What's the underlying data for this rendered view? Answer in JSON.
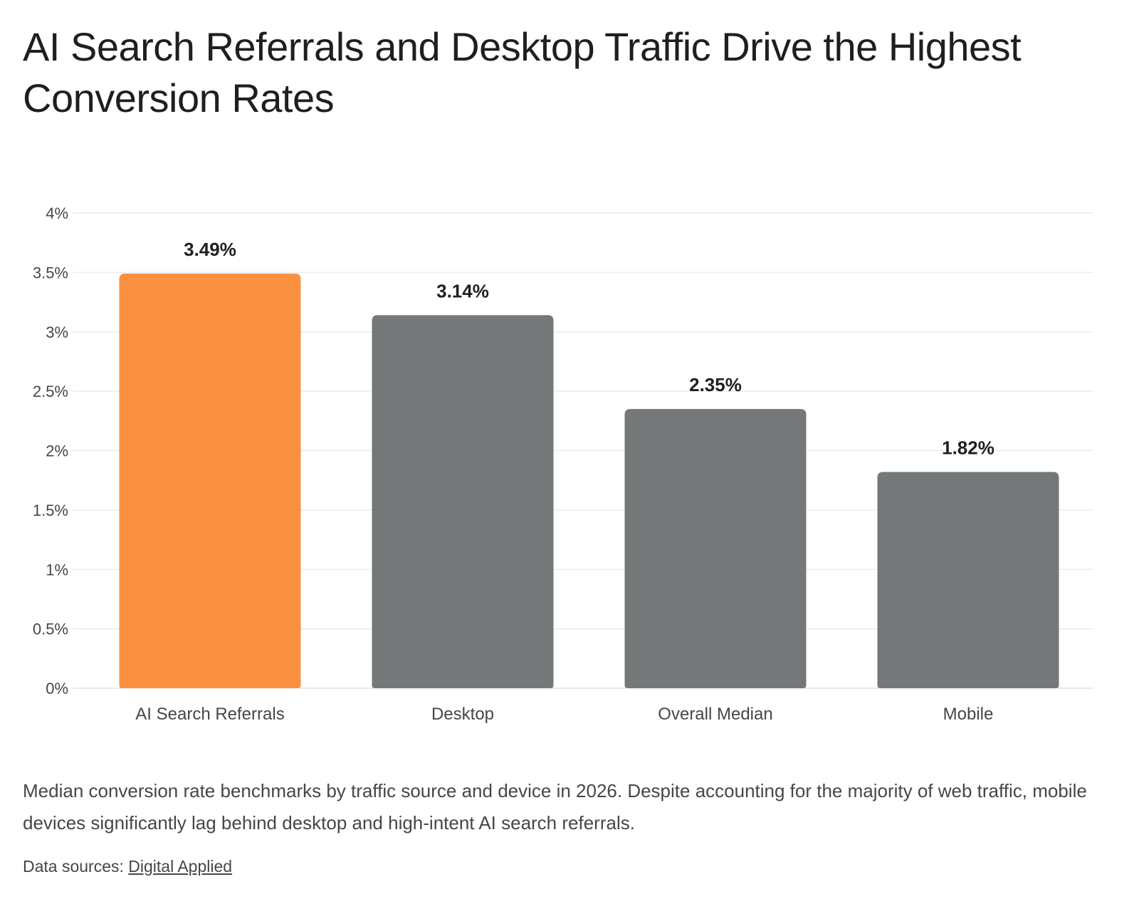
{
  "chart_data": {
    "type": "bar",
    "title": "AI Search Referrals and Desktop Traffic Drive the Highest Conversion Rates",
    "categories": [
      "AI Search Referrals",
      "Desktop",
      "Overall Median",
      "Mobile"
    ],
    "values": [
      3.49,
      3.14,
      2.35,
      1.82
    ],
    "value_labels": [
      "3.49%",
      "3.14%",
      "2.35%",
      "1.82%"
    ],
    "bar_colors": [
      "#f99141",
      "#747878",
      "#747878",
      "#747878"
    ],
    "ylim": [
      0,
      4
    ],
    "yticks": [
      0,
      0.5,
      1,
      1.5,
      2,
      2.5,
      3,
      3.5,
      4
    ],
    "ytick_labels": [
      "0%",
      "0.5%",
      "1%",
      "1.5%",
      "2%",
      "2.5%",
      "3%",
      "3.5%",
      "4%"
    ],
    "grid": true,
    "legend": "none"
  },
  "caption": "Median conversion rate benchmarks by traffic source and device in 2026. Despite accounting for the majority of web traffic, mobile devices significantly lag behind desktop and high-intent AI search referrals.",
  "source": {
    "prefix": "Data sources: ",
    "link_text": "Digital Applied"
  }
}
